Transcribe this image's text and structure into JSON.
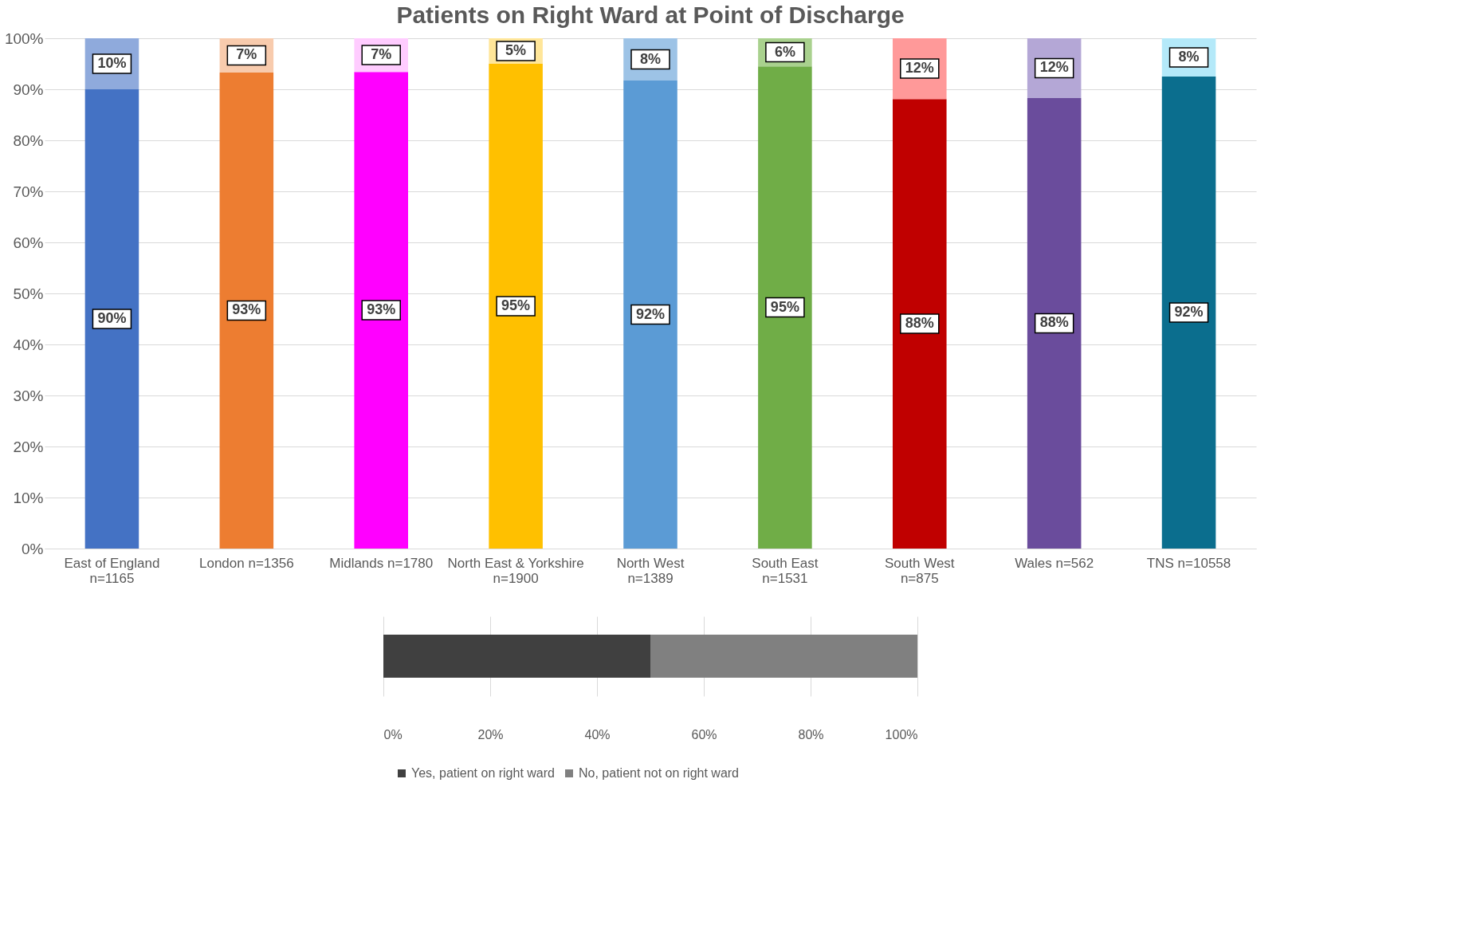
{
  "chart_data": [
    {
      "type": "bar",
      "title": "Patients on Right Ward at Point of Discharge",
      "stacked": true,
      "categories": [
        "East of England n=1165",
        "London n=1356",
        "Midlands n=1780",
        "North East & Yorkshire n=1900",
        "North West n=1389",
        "South East n=1531",
        "South West n=875",
        "Wales n=562",
        "TNS n=10558"
      ],
      "series": [
        {
          "colors": [
            "#4472c4",
            "#ed7d31",
            "#ff00ff",
            "#ffc000",
            "#5b9bd5",
            "#70ad47",
            "#c00000",
            "#6a4c9c",
            "#0b6e8e"
          ],
          "values": [
            90,
            93.3,
            93.4,
            95,
            91.7,
            94.5,
            88.1,
            88.3,
            92.5
          ],
          "value_labels": [
            "90%",
            "93%",
            "93%",
            "95%",
            "92%",
            "95%",
            "88%",
            "88%",
            "92%"
          ]
        },
        {
          "colors": [
            "#8faadc",
            "#f8cbad",
            "#ffccff",
            "#ffe699",
            "#9dc3e6",
            "#a9d18e",
            "#ff9999",
            "#b4a7d6",
            "#b4e9f9"
          ],
          "values": [
            10,
            6.7,
            6.6,
            5,
            8.3,
            5.5,
            11.9,
            11.7,
            7.5
          ],
          "value_labels": [
            "10%",
            "7%",
            "7%",
            "5%",
            "8%",
            "6%",
            "12%",
            "12%",
            "8%"
          ]
        }
      ],
      "ylim": [
        0,
        100
      ],
      "yticks": [
        {
          "value": 0,
          "label": "0%"
        },
        {
          "value": 10,
          "label": "10%"
        },
        {
          "value": 20,
          "label": "20%"
        },
        {
          "value": 30,
          "label": "30%"
        },
        {
          "value": 40,
          "label": "40%"
        },
        {
          "value": 50,
          "label": "50%"
        },
        {
          "value": 60,
          "label": "60%"
        },
        {
          "value": 70,
          "label": "70%"
        },
        {
          "value": 80,
          "label": "80%"
        },
        {
          "value": 90,
          "label": "90%"
        },
        {
          "value": 100,
          "label": "100%"
        }
      ],
      "grid": "y"
    },
    {
      "type": "bar",
      "orientation": "horizontal",
      "stacked": true,
      "categories": [
        null
      ],
      "series": [
        {
          "name": "Yes, patient on right ward",
          "color": "#404040",
          "values": [
            50
          ]
        },
        {
          "name": "No, patient not on right ward",
          "color": "#808080",
          "values": [
            50
          ]
        }
      ],
      "xlim": [
        0,
        100
      ],
      "xticks": [
        {
          "value": 0,
          "label": "0%"
        },
        {
          "value": 20,
          "label": "20%"
        },
        {
          "value": 40,
          "label": "40%"
        },
        {
          "value": 60,
          "label": "60%"
        },
        {
          "value": 80,
          "label": "80%"
        },
        {
          "value": 100,
          "label": "100%"
        }
      ],
      "grid": "x",
      "legend": "bottom"
    }
  ]
}
